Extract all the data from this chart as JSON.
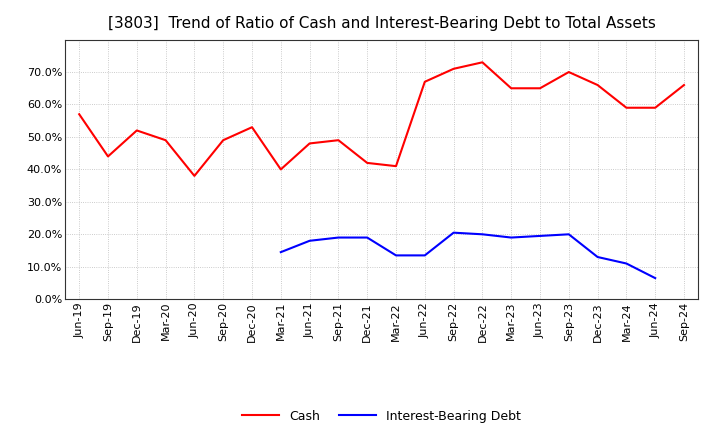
{
  "title": "[3803]  Trend of Ratio of Cash and Interest-Bearing Debt to Total Assets",
  "x_labels": [
    "Jun-19",
    "Sep-19",
    "Dec-19",
    "Mar-20",
    "Jun-20",
    "Sep-20",
    "Dec-20",
    "Mar-21",
    "Jun-21",
    "Sep-21",
    "Dec-21",
    "Mar-22",
    "Jun-22",
    "Sep-22",
    "Dec-22",
    "Mar-23",
    "Jun-23",
    "Sep-23",
    "Dec-23",
    "Mar-24",
    "Jun-24",
    "Sep-24"
  ],
  "cash": [
    0.57,
    0.44,
    0.52,
    0.49,
    0.38,
    0.49,
    0.53,
    0.4,
    0.48,
    0.49,
    0.42,
    0.41,
    0.67,
    0.71,
    0.73,
    0.65,
    0.65,
    0.7,
    0.66,
    0.59,
    0.59,
    0.66
  ],
  "interest_bearing_debt": [
    null,
    null,
    null,
    null,
    null,
    null,
    null,
    0.145,
    0.18,
    0.19,
    0.19,
    0.135,
    0.135,
    0.205,
    0.2,
    0.19,
    0.195,
    0.2,
    0.13,
    0.11,
    0.065,
    null
  ],
  "cash_color": "#ff0000",
  "debt_color": "#0000ff",
  "background_color": "#ffffff",
  "grid_color": "#bbbbbb",
  "ylim": [
    0.0,
    0.8
  ],
  "yticks": [
    0.0,
    0.1,
    0.2,
    0.3,
    0.4,
    0.5,
    0.6,
    0.7
  ],
  "legend_cash": "Cash",
  "legend_debt": "Interest-Bearing Debt",
  "title_fontsize": 11,
  "tick_fontsize": 8,
  "legend_fontsize": 9
}
